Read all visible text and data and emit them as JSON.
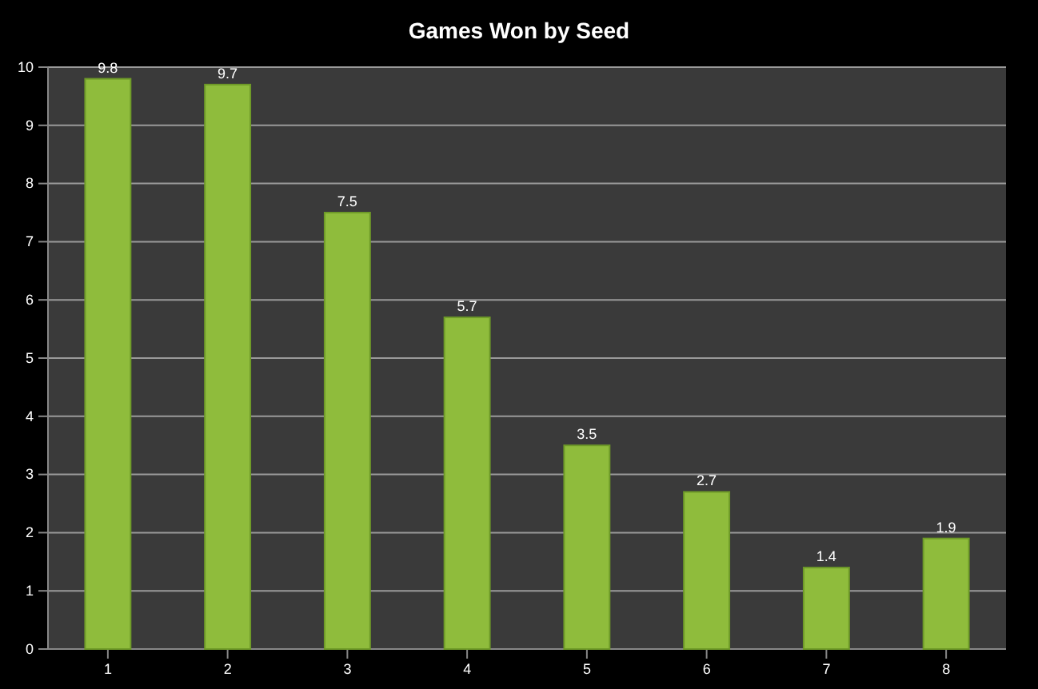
{
  "chart_data": {
    "type": "bar",
    "title": "Games Won by Seed",
    "categories": [
      "1",
      "2",
      "3",
      "4",
      "5",
      "6",
      "7",
      "8"
    ],
    "values": [
      9.8,
      9.7,
      7.5,
      5.7,
      3.5,
      2.7,
      1.4,
      1.9
    ],
    "color": "#8fbc3c",
    "ylim": [
      0,
      10
    ],
    "yticks": [
      0,
      1,
      2,
      3,
      4,
      5,
      6,
      7,
      8,
      9,
      10
    ],
    "grid": "y",
    "data_labels": true
  }
}
